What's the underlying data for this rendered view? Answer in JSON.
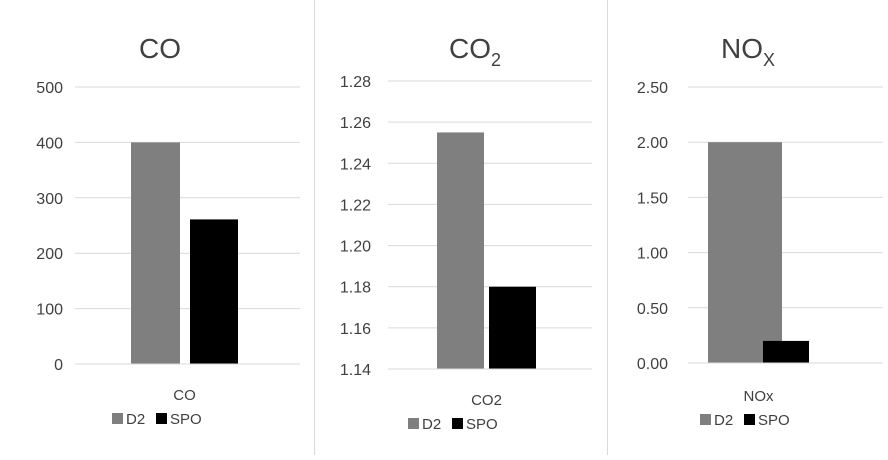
{
  "chart_data": [
    {
      "type": "bar",
      "title": "CO",
      "title_sub": "",
      "categories": [
        "CO"
      ],
      "series": [
        {
          "name": "D2",
          "values": [
            400
          ]
        },
        {
          "name": "SPO",
          "values": [
            261
          ]
        }
      ],
      "ylim": [
        0,
        500
      ],
      "yticks": [
        "0",
        "100",
        "200",
        "300",
        "400",
        "500"
      ],
      "grid": true,
      "legend": "bottom"
    },
    {
      "type": "bar",
      "title": "CO",
      "title_sub": "2",
      "categories": [
        "CO2"
      ],
      "series": [
        {
          "name": "D2",
          "values": [
            1.255
          ]
        },
        {
          "name": "SPO",
          "values": [
            1.18
          ]
        }
      ],
      "ylim": [
        1.14,
        1.28
      ],
      "yticks": [
        "1.14",
        "1.16",
        "1.18",
        "1.20",
        "1.22",
        "1.24",
        "1.26",
        "1.28"
      ],
      "grid": true,
      "legend": "bottom"
    },
    {
      "type": "bar",
      "title": "NO",
      "title_sub": "X",
      "categories": [
        "NOx"
      ],
      "series": [
        {
          "name": "D2",
          "values": [
            2.0
          ]
        },
        {
          "name": "SPO",
          "values": [
            0.2
          ]
        }
      ],
      "ylim": [
        0,
        2.5
      ],
      "yticks": [
        "0.00",
        "0.50",
        "1.00",
        "1.50",
        "2.00",
        "2.50"
      ],
      "grid": true,
      "legend": "bottom"
    }
  ],
  "colors": {
    "D2": "#7f7f7f",
    "SPO": "#000000",
    "grid": "#d9d9d9",
    "text": "#404040"
  }
}
